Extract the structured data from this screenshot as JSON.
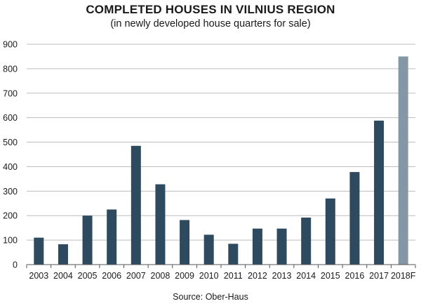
{
  "chart_data": {
    "type": "bar",
    "title": "COMPLETED HOUSES IN VILNIUS REGION",
    "subtitle": "(in newly developed house quarters for sale)",
    "categories": [
      "2003",
      "2004",
      "2005",
      "2006",
      "2007",
      "2008",
      "2009",
      "2010",
      "2011",
      "2012",
      "2013",
      "2014",
      "2015",
      "2016",
      "2017",
      "2018F"
    ],
    "values": [
      110,
      83,
      200,
      225,
      485,
      328,
      182,
      122,
      85,
      147,
      147,
      192,
      270,
      378,
      588,
      850
    ],
    "forecast": [
      false,
      false,
      false,
      false,
      false,
      false,
      false,
      false,
      false,
      false,
      false,
      false,
      false,
      false,
      false,
      true
    ],
    "ylim": [
      0,
      900
    ],
    "yticks": [
      0,
      100,
      200,
      300,
      400,
      500,
      600,
      700,
      800,
      900
    ],
    "grid": true,
    "colors": {
      "bar": "#2d4a5e",
      "forecast_bar": "#8597a5",
      "grid": "#bdbdbd",
      "axis": "#555555"
    }
  },
  "source": "Source: Ober-Haus"
}
